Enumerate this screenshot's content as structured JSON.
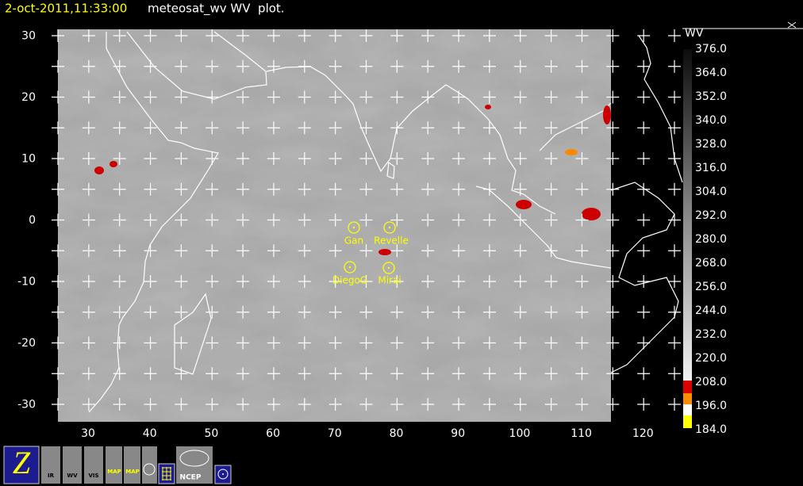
{
  "header": {
    "timestamp": "2-oct-2011,11:33:00",
    "title": "meteosat_wv WV  plot."
  },
  "axes": {
    "y_ticks": [
      30,
      20,
      10,
      0,
      -10,
      -20,
      -30
    ],
    "x_ticks": [
      30,
      40,
      50,
      60,
      70,
      80,
      90,
      100,
      110,
      120
    ]
  },
  "colorbar": {
    "title": "WV",
    "labels": [
      {
        "value": 376,
        "label": "376.0"
      },
      {
        "value": 364,
        "label": "364.0"
      },
      {
        "value": 352,
        "label": "352.0"
      },
      {
        "value": 340,
        "label": "340.0"
      },
      {
        "value": 328,
        "label": "328.0"
      },
      {
        "value": 316,
        "label": "316.0"
      },
      {
        "value": 304,
        "label": "304.0"
      },
      {
        "value": 292,
        "label": "292.0"
      },
      {
        "value": 280,
        "label": "280.0"
      },
      {
        "value": 268,
        "label": "268.0"
      },
      {
        "value": 256,
        "label": "256.0"
      },
      {
        "value": 244,
        "label": "244.0"
      },
      {
        "value": 232,
        "label": "232.0"
      },
      {
        "value": 220,
        "label": "220.0"
      },
      {
        "value": 208,
        "label": "208.0"
      },
      {
        "value": 196,
        "label": "196.0"
      },
      {
        "value": 184,
        "label": "184.0"
      }
    ]
  },
  "stations": [
    "Gan",
    "Revelle",
    "DiegoG",
    "Mirai"
  ],
  "toolbar": [
    "IR",
    "WV",
    "VIS",
    "MAP",
    "MAP",
    "NCEP"
  ]
}
